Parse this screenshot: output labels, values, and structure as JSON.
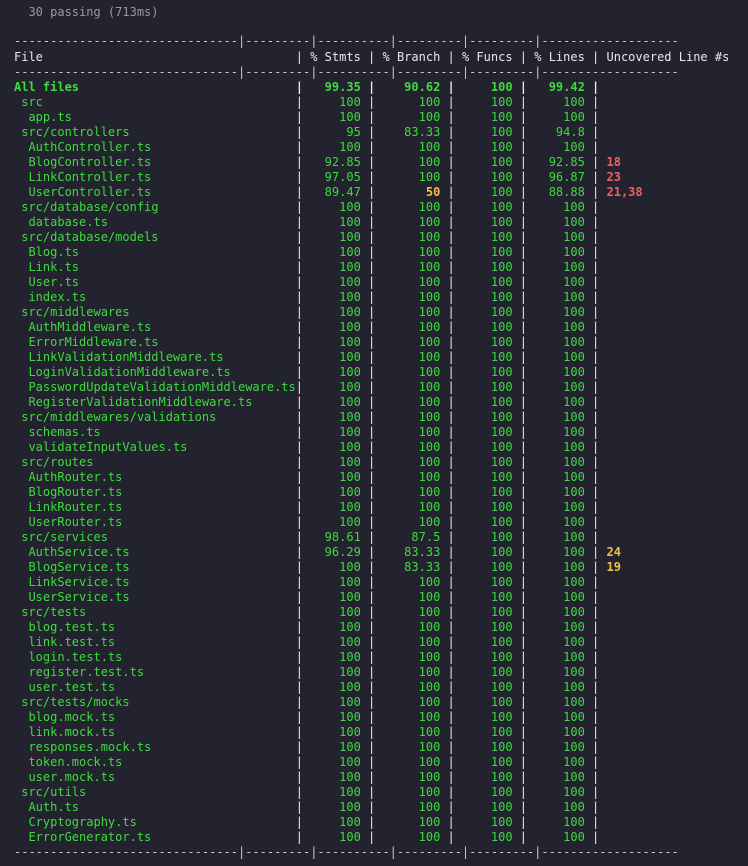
{
  "summary": "30 passing (713ms)",
  "separator": "-------------------------------|---------|----------|---------|---------|-------------------",
  "headers": [
    "File",
    "% Stmts",
    "% Branch",
    "% Funcs",
    "% Lines",
    "Uncovered Line #s"
  ],
  "colors": {
    "good": "#3edb3e",
    "medium": "#f0c040",
    "low": "#f06060",
    "background": "#23232f"
  },
  "rows": [
    {
      "file": "All files",
      "indent": 0,
      "stmts": "99.35",
      "branch": "90.62",
      "funcs": "100",
      "lines": "99.42",
      "uncovered": "",
      "c": [
        "g",
        "g",
        "g",
        "g"
      ],
      "u": ""
    },
    {
      "file": "src",
      "indent": 1,
      "stmts": "100",
      "branch": "100",
      "funcs": "100",
      "lines": "100",
      "uncovered": "",
      "c": [
        "g",
        "g",
        "g",
        "g"
      ],
      "u": ""
    },
    {
      "file": "app.ts",
      "indent": 2,
      "stmts": "100",
      "branch": "100",
      "funcs": "100",
      "lines": "100",
      "uncovered": "",
      "c": [
        "g",
        "g",
        "g",
        "g"
      ],
      "u": ""
    },
    {
      "file": "src/controllers",
      "indent": 1,
      "stmts": "95",
      "branch": "83.33",
      "funcs": "100",
      "lines": "94.8",
      "uncovered": "",
      "c": [
        "g",
        "g",
        "g",
        "g"
      ],
      "u": ""
    },
    {
      "file": "AuthController.ts",
      "indent": 2,
      "stmts": "100",
      "branch": "100",
      "funcs": "100",
      "lines": "100",
      "uncovered": "",
      "c": [
        "g",
        "g",
        "g",
        "g"
      ],
      "u": ""
    },
    {
      "file": "BlogController.ts",
      "indent": 2,
      "stmts": "92.85",
      "branch": "100",
      "funcs": "100",
      "lines": "92.85",
      "uncovered": "18",
      "c": [
        "g",
        "g",
        "g",
        "g"
      ],
      "u": "r"
    },
    {
      "file": "LinkController.ts",
      "indent": 2,
      "stmts": "97.05",
      "branch": "100",
      "funcs": "100",
      "lines": "96.87",
      "uncovered": "23",
      "c": [
        "g",
        "g",
        "g",
        "g"
      ],
      "u": "r"
    },
    {
      "file": "UserController.ts",
      "indent": 2,
      "stmts": "89.47",
      "branch": "50",
      "funcs": "100",
      "lines": "88.88",
      "uncovered": "21,38",
      "c": [
        "g",
        "y",
        "g",
        "g"
      ],
      "u": "r"
    },
    {
      "file": "src/database/config",
      "indent": 1,
      "stmts": "100",
      "branch": "100",
      "funcs": "100",
      "lines": "100",
      "uncovered": "",
      "c": [
        "g",
        "g",
        "g",
        "g"
      ],
      "u": ""
    },
    {
      "file": "database.ts",
      "indent": 2,
      "stmts": "100",
      "branch": "100",
      "funcs": "100",
      "lines": "100",
      "uncovered": "",
      "c": [
        "g",
        "g",
        "g",
        "g"
      ],
      "u": ""
    },
    {
      "file": "src/database/models",
      "indent": 1,
      "stmts": "100",
      "branch": "100",
      "funcs": "100",
      "lines": "100",
      "uncovered": "",
      "c": [
        "g",
        "g",
        "g",
        "g"
      ],
      "u": ""
    },
    {
      "file": "Blog.ts",
      "indent": 2,
      "stmts": "100",
      "branch": "100",
      "funcs": "100",
      "lines": "100",
      "uncovered": "",
      "c": [
        "g",
        "g",
        "g",
        "g"
      ],
      "u": ""
    },
    {
      "file": "Link.ts",
      "indent": 2,
      "stmts": "100",
      "branch": "100",
      "funcs": "100",
      "lines": "100",
      "uncovered": "",
      "c": [
        "g",
        "g",
        "g",
        "g"
      ],
      "u": ""
    },
    {
      "file": "User.ts",
      "indent": 2,
      "stmts": "100",
      "branch": "100",
      "funcs": "100",
      "lines": "100",
      "uncovered": "",
      "c": [
        "g",
        "g",
        "g",
        "g"
      ],
      "u": ""
    },
    {
      "file": "index.ts",
      "indent": 2,
      "stmts": "100",
      "branch": "100",
      "funcs": "100",
      "lines": "100",
      "uncovered": "",
      "c": [
        "g",
        "g",
        "g",
        "g"
      ],
      "u": ""
    },
    {
      "file": "src/middlewares",
      "indent": 1,
      "stmts": "100",
      "branch": "100",
      "funcs": "100",
      "lines": "100",
      "uncovered": "",
      "c": [
        "g",
        "g",
        "g",
        "g"
      ],
      "u": ""
    },
    {
      "file": "AuthMiddleware.ts",
      "indent": 2,
      "stmts": "100",
      "branch": "100",
      "funcs": "100",
      "lines": "100",
      "uncovered": "",
      "c": [
        "g",
        "g",
        "g",
        "g"
      ],
      "u": ""
    },
    {
      "file": "ErrorMiddleware.ts",
      "indent": 2,
      "stmts": "100",
      "branch": "100",
      "funcs": "100",
      "lines": "100",
      "uncovered": "",
      "c": [
        "g",
        "g",
        "g",
        "g"
      ],
      "u": ""
    },
    {
      "file": "LinkValidationMiddleware.ts",
      "indent": 2,
      "stmts": "100",
      "branch": "100",
      "funcs": "100",
      "lines": "100",
      "uncovered": "",
      "c": [
        "g",
        "g",
        "g",
        "g"
      ],
      "u": ""
    },
    {
      "file": "LoginValidationMiddleware.ts",
      "indent": 2,
      "stmts": "100",
      "branch": "100",
      "funcs": "100",
      "lines": "100",
      "uncovered": "",
      "c": [
        "g",
        "g",
        "g",
        "g"
      ],
      "u": ""
    },
    {
      "file": "PasswordUpdateValidationMiddleware.ts",
      "indent": 2,
      "stmts": "100",
      "branch": "100",
      "funcs": "100",
      "lines": "100",
      "uncovered": "",
      "c": [
        "g",
        "g",
        "g",
        "g"
      ],
      "u": ""
    },
    {
      "file": "RegisterValidationMiddleware.ts",
      "indent": 2,
      "stmts": "100",
      "branch": "100",
      "funcs": "100",
      "lines": "100",
      "uncovered": "",
      "c": [
        "g",
        "g",
        "g",
        "g"
      ],
      "u": ""
    },
    {
      "file": "src/middlewares/validations",
      "indent": 1,
      "stmts": "100",
      "branch": "100",
      "funcs": "100",
      "lines": "100",
      "uncovered": "",
      "c": [
        "g",
        "g",
        "g",
        "g"
      ],
      "u": ""
    },
    {
      "file": "schemas.ts",
      "indent": 2,
      "stmts": "100",
      "branch": "100",
      "funcs": "100",
      "lines": "100",
      "uncovered": "",
      "c": [
        "g",
        "g",
        "g",
        "g"
      ],
      "u": ""
    },
    {
      "file": "validateInputValues.ts",
      "indent": 2,
      "stmts": "100",
      "branch": "100",
      "funcs": "100",
      "lines": "100",
      "uncovered": "",
      "c": [
        "g",
        "g",
        "g",
        "g"
      ],
      "u": ""
    },
    {
      "file": "src/routes",
      "indent": 1,
      "stmts": "100",
      "branch": "100",
      "funcs": "100",
      "lines": "100",
      "uncovered": "",
      "c": [
        "g",
        "g",
        "g",
        "g"
      ],
      "u": ""
    },
    {
      "file": "AuthRouter.ts",
      "indent": 2,
      "stmts": "100",
      "branch": "100",
      "funcs": "100",
      "lines": "100",
      "uncovered": "",
      "c": [
        "g",
        "g",
        "g",
        "g"
      ],
      "u": ""
    },
    {
      "file": "BlogRouter.ts",
      "indent": 2,
      "stmts": "100",
      "branch": "100",
      "funcs": "100",
      "lines": "100",
      "uncovered": "",
      "c": [
        "g",
        "g",
        "g",
        "g"
      ],
      "u": ""
    },
    {
      "file": "LinkRouter.ts",
      "indent": 2,
      "stmts": "100",
      "branch": "100",
      "funcs": "100",
      "lines": "100",
      "uncovered": "",
      "c": [
        "g",
        "g",
        "g",
        "g"
      ],
      "u": ""
    },
    {
      "file": "UserRouter.ts",
      "indent": 2,
      "stmts": "100",
      "branch": "100",
      "funcs": "100",
      "lines": "100",
      "uncovered": "",
      "c": [
        "g",
        "g",
        "g",
        "g"
      ],
      "u": ""
    },
    {
      "file": "src/services",
      "indent": 1,
      "stmts": "98.61",
      "branch": "87.5",
      "funcs": "100",
      "lines": "100",
      "uncovered": "",
      "c": [
        "g",
        "g",
        "g",
        "g"
      ],
      "u": ""
    },
    {
      "file": "AuthService.ts",
      "indent": 2,
      "stmts": "96.29",
      "branch": "83.33",
      "funcs": "100",
      "lines": "100",
      "uncovered": "24",
      "c": [
        "g",
        "g",
        "g",
        "g"
      ],
      "u": "y"
    },
    {
      "file": "BlogService.ts",
      "indent": 2,
      "stmts": "100",
      "branch": "83.33",
      "funcs": "100",
      "lines": "100",
      "uncovered": "19",
      "c": [
        "g",
        "g",
        "g",
        "g"
      ],
      "u": "y"
    },
    {
      "file": "LinkService.ts",
      "indent": 2,
      "stmts": "100",
      "branch": "100",
      "funcs": "100",
      "lines": "100",
      "uncovered": "",
      "c": [
        "g",
        "g",
        "g",
        "g"
      ],
      "u": ""
    },
    {
      "file": "UserService.ts",
      "indent": 2,
      "stmts": "100",
      "branch": "100",
      "funcs": "100",
      "lines": "100",
      "uncovered": "",
      "c": [
        "g",
        "g",
        "g",
        "g"
      ],
      "u": ""
    },
    {
      "file": "src/tests",
      "indent": 1,
      "stmts": "100",
      "branch": "100",
      "funcs": "100",
      "lines": "100",
      "uncovered": "",
      "c": [
        "g",
        "g",
        "g",
        "g"
      ],
      "u": ""
    },
    {
      "file": "blog.test.ts",
      "indent": 2,
      "stmts": "100",
      "branch": "100",
      "funcs": "100",
      "lines": "100",
      "uncovered": "",
      "c": [
        "g",
        "g",
        "g",
        "g"
      ],
      "u": ""
    },
    {
      "file": "link.test.ts",
      "indent": 2,
      "stmts": "100",
      "branch": "100",
      "funcs": "100",
      "lines": "100",
      "uncovered": "",
      "c": [
        "g",
        "g",
        "g",
        "g"
      ],
      "u": ""
    },
    {
      "file": "login.test.ts",
      "indent": 2,
      "stmts": "100",
      "branch": "100",
      "funcs": "100",
      "lines": "100",
      "uncovered": "",
      "c": [
        "g",
        "g",
        "g",
        "g"
      ],
      "u": ""
    },
    {
      "file": "register.test.ts",
      "indent": 2,
      "stmts": "100",
      "branch": "100",
      "funcs": "100",
      "lines": "100",
      "uncovered": "",
      "c": [
        "g",
        "g",
        "g",
        "g"
      ],
      "u": ""
    },
    {
      "file": "user.test.ts",
      "indent": 2,
      "stmts": "100",
      "branch": "100",
      "funcs": "100",
      "lines": "100",
      "uncovered": "",
      "c": [
        "g",
        "g",
        "g",
        "g"
      ],
      "u": ""
    },
    {
      "file": "src/tests/mocks",
      "indent": 1,
      "stmts": "100",
      "branch": "100",
      "funcs": "100",
      "lines": "100",
      "uncovered": "",
      "c": [
        "g",
        "g",
        "g",
        "g"
      ],
      "u": ""
    },
    {
      "file": "blog.mock.ts",
      "indent": 2,
      "stmts": "100",
      "branch": "100",
      "funcs": "100",
      "lines": "100",
      "uncovered": "",
      "c": [
        "g",
        "g",
        "g",
        "g"
      ],
      "u": ""
    },
    {
      "file": "link.mock.ts",
      "indent": 2,
      "stmts": "100",
      "branch": "100",
      "funcs": "100",
      "lines": "100",
      "uncovered": "",
      "c": [
        "g",
        "g",
        "g",
        "g"
      ],
      "u": ""
    },
    {
      "file": "responses.mock.ts",
      "indent": 2,
      "stmts": "100",
      "branch": "100",
      "funcs": "100",
      "lines": "100",
      "uncovered": "",
      "c": [
        "g",
        "g",
        "g",
        "g"
      ],
      "u": ""
    },
    {
      "file": "token.mock.ts",
      "indent": 2,
      "stmts": "100",
      "branch": "100",
      "funcs": "100",
      "lines": "100",
      "uncovered": "",
      "c": [
        "g",
        "g",
        "g",
        "g"
      ],
      "u": ""
    },
    {
      "file": "user.mock.ts",
      "indent": 2,
      "stmts": "100",
      "branch": "100",
      "funcs": "100",
      "lines": "100",
      "uncovered": "",
      "c": [
        "g",
        "g",
        "g",
        "g"
      ],
      "u": ""
    },
    {
      "file": "src/utils",
      "indent": 1,
      "stmts": "100",
      "branch": "100",
      "funcs": "100",
      "lines": "100",
      "uncovered": "",
      "c": [
        "g",
        "g",
        "g",
        "g"
      ],
      "u": ""
    },
    {
      "file": "Auth.ts",
      "indent": 2,
      "stmts": "100",
      "branch": "100",
      "funcs": "100",
      "lines": "100",
      "uncovered": "",
      "c": [
        "g",
        "g",
        "g",
        "g"
      ],
      "u": ""
    },
    {
      "file": "Cryptography.ts",
      "indent": 2,
      "stmts": "100",
      "branch": "100",
      "funcs": "100",
      "lines": "100",
      "uncovered": "",
      "c": [
        "g",
        "g",
        "g",
        "g"
      ],
      "u": ""
    },
    {
      "file": "ErrorGenerator.ts",
      "indent": 2,
      "stmts": "100",
      "branch": "100",
      "funcs": "100",
      "lines": "100",
      "uncovered": "",
      "c": [
        "g",
        "g",
        "g",
        "g"
      ],
      "u": ""
    }
  ]
}
